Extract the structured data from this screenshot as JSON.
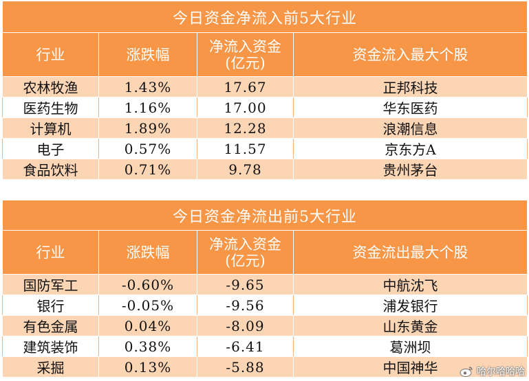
{
  "inflow_table": {
    "title": "今日资金净流入前5大行业",
    "headers": [
      "行业",
      "涨跌幅",
      "净流入资金",
      "(亿元)",
      "资金流入最大个股"
    ],
    "rows": [
      {
        "industry": "农林牧渔",
        "change": "1.43%",
        "net": "17.67",
        "top_stock": "正邦科技"
      },
      {
        "industry": "医药生物",
        "change": "1.16%",
        "net": "17.00",
        "top_stock": "华东医药"
      },
      {
        "industry": "计算机",
        "change": "1.89%",
        "net": "12.28",
        "top_stock": "浪潮信息"
      },
      {
        "industry": "电子",
        "change": "0.57%",
        "net": "11.57",
        "top_stock": "京东方A"
      },
      {
        "industry": "食品饮料",
        "change": "0.71%",
        "net": "9.78",
        "top_stock": "贵州茅台"
      }
    ]
  },
  "outflow_table": {
    "title": "今日资金净流出前5大行业",
    "headers": [
      "行业",
      "涨跌幅",
      "净流入资金",
      "(亿元)",
      "资金流出最大个股"
    ],
    "rows": [
      {
        "industry": "国防军工",
        "change": "-0.60%",
        "net": "-9.65",
        "top_stock": "中航沈飞"
      },
      {
        "industry": "银行",
        "change": "-0.05%",
        "net": "-9.56",
        "top_stock": "浦发银行"
      },
      {
        "industry": "有色金属",
        "change": "0.04%",
        "net": "-8.09",
        "top_stock": "山东黄金"
      },
      {
        "industry": "建筑装饰",
        "change": "0.38%",
        "net": "-6.41",
        "top_stock": "葛洲坝"
      },
      {
        "industry": "采掘",
        "change": "0.13%",
        "net": "-5.88",
        "top_stock": "中国神华"
      }
    ]
  },
  "watermark": {
    "text": "哈尔哈哈哈",
    "icon": "weibo-logo-icon"
  },
  "colors": {
    "header": "#f79646",
    "band": "#fcd5b5",
    "white": "#ffffff"
  }
}
